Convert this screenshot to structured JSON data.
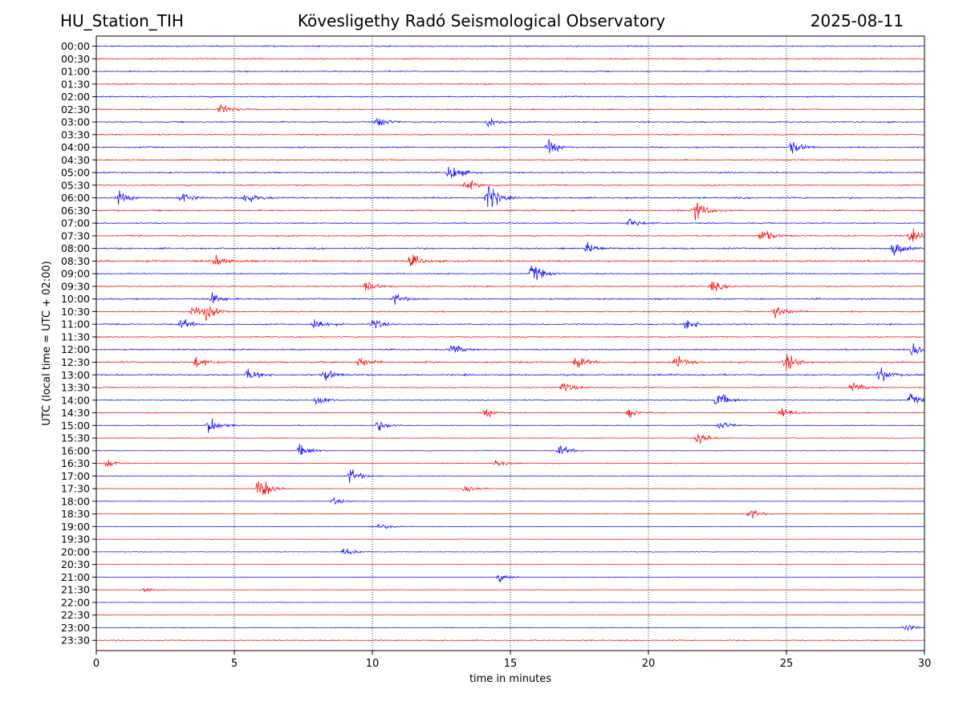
{
  "header": {
    "station": "HU_Station_TIH",
    "observatory": "Kövesligethy Radó Seismological Observatory",
    "date": "2025-08-11"
  },
  "chart_data": {
    "type": "line",
    "title": "Kövesligethy Radó Seismological Observatory",
    "xlabel": "time in minutes",
    "ylabel": "UTC (local time = UTC + 02:00)",
    "xlim": [
      0,
      30
    ],
    "x_ticks": [
      0,
      5,
      10,
      15,
      20,
      25,
      30
    ],
    "vertical_grid": [
      5,
      10,
      15,
      20,
      25
    ],
    "grid": "vertical dotted",
    "series_colors": [
      "#0000ff",
      "#ff0000"
    ],
    "rows": [
      {
        "label": "00:00",
        "noise": 0.55,
        "events": []
      },
      {
        "label": "00:30",
        "noise": 0.55,
        "events": []
      },
      {
        "label": "01:00",
        "noise": 0.5,
        "events": []
      },
      {
        "label": "01:30",
        "noise": 0.5,
        "events": []
      },
      {
        "label": "02:00",
        "noise": 0.6,
        "events": []
      },
      {
        "label": "02:30",
        "noise": 0.55,
        "events": [
          [
            4.5,
            0.9
          ]
        ]
      },
      {
        "label": "03:00",
        "noise": 0.55,
        "events": [
          [
            10.2,
            0.9
          ],
          [
            14.2,
            0.9
          ]
        ]
      },
      {
        "label": "03:30",
        "noise": 0.5,
        "events": []
      },
      {
        "label": "04:00",
        "noise": 0.6,
        "events": [
          [
            16.4,
            1.2
          ],
          [
            25.2,
            1.0
          ]
        ]
      },
      {
        "label": "04:30",
        "noise": 0.5,
        "events": []
      },
      {
        "label": "05:00",
        "noise": 0.6,
        "events": [
          [
            12.8,
            1.6
          ]
        ]
      },
      {
        "label": "05:30",
        "noise": 0.5,
        "events": [
          [
            13.4,
            1.0
          ]
        ]
      },
      {
        "label": "06:00",
        "noise": 0.7,
        "events": [
          [
            0.8,
            1.0
          ],
          [
            3.1,
            1.0
          ],
          [
            5.4,
            1.1
          ],
          [
            14.2,
            2.3
          ]
        ]
      },
      {
        "label": "06:30",
        "noise": 0.6,
        "events": [
          [
            21.7,
            1.8
          ]
        ]
      },
      {
        "label": "07:00",
        "noise": 0.5,
        "events": [
          [
            19.3,
            0.9
          ]
        ]
      },
      {
        "label": "07:30",
        "noise": 0.55,
        "events": [
          [
            24.1,
            1.3
          ],
          [
            29.5,
            1.0
          ]
        ]
      },
      {
        "label": "08:00",
        "noise": 0.7,
        "events": [
          [
            17.8,
            1.0
          ],
          [
            28.9,
            1.2
          ]
        ]
      },
      {
        "label": "08:30",
        "noise": 0.75,
        "events": [
          [
            4.3,
            1.0
          ],
          [
            11.4,
            1.0
          ]
        ]
      },
      {
        "label": "09:00",
        "noise": 0.5,
        "events": [
          [
            15.8,
            1.6
          ]
        ]
      },
      {
        "label": "09:30",
        "noise": 0.5,
        "events": [
          [
            9.8,
            1.0
          ],
          [
            22.3,
            0.9
          ]
        ]
      },
      {
        "label": "10:00",
        "noise": 0.6,
        "events": [
          [
            4.2,
            0.9
          ],
          [
            10.8,
            0.9
          ]
        ]
      },
      {
        "label": "10:30",
        "noise": 0.55,
        "events": [
          [
            3.5,
            1.0
          ],
          [
            4.0,
            1.2
          ],
          [
            24.6,
            1.2
          ]
        ]
      },
      {
        "label": "11:00",
        "noise": 0.6,
        "events": [
          [
            3.1,
            0.9
          ],
          [
            7.9,
            1.1
          ],
          [
            10.0,
            1.0
          ],
          [
            21.4,
            0.9
          ]
        ]
      },
      {
        "label": "11:30",
        "noise": 0.5,
        "events": []
      },
      {
        "label": "12:00",
        "noise": 0.6,
        "events": [
          [
            12.9,
            0.9
          ],
          [
            29.6,
            1.2
          ]
        ]
      },
      {
        "label": "12:30",
        "noise": 0.7,
        "events": [
          [
            3.6,
            1.0
          ],
          [
            9.5,
            0.9
          ],
          [
            17.4,
            1.0
          ],
          [
            21.0,
            1.0
          ],
          [
            25.0,
            1.6
          ]
        ]
      },
      {
        "label": "13:00",
        "noise": 0.7,
        "events": [
          [
            5.5,
            1.0
          ],
          [
            8.3,
            1.0
          ],
          [
            28.4,
            1.2
          ]
        ]
      },
      {
        "label": "13:30",
        "noise": 0.45,
        "events": [
          [
            16.9,
            1.0
          ],
          [
            27.4,
            0.9
          ]
        ]
      },
      {
        "label": "14:00",
        "noise": 0.45,
        "events": [
          [
            8.0,
            1.0
          ],
          [
            22.5,
            1.5
          ],
          [
            29.5,
            1.0
          ]
        ]
      },
      {
        "label": "14:30",
        "noise": 0.4,
        "events": [
          [
            14.1,
            0.8
          ],
          [
            19.3,
            0.8
          ],
          [
            24.8,
            1.0
          ]
        ]
      },
      {
        "label": "15:00",
        "noise": 0.35,
        "events": [
          [
            4.1,
            1.5
          ],
          [
            10.2,
            0.9
          ],
          [
            22.6,
            0.8
          ]
        ]
      },
      {
        "label": "15:30",
        "noise": 0.3,
        "events": [
          [
            21.8,
            1.3
          ]
        ]
      },
      {
        "label": "16:00",
        "noise": 0.3,
        "events": [
          [
            7.4,
            1.2
          ],
          [
            16.8,
            0.9
          ]
        ]
      },
      {
        "label": "16:30",
        "noise": 0.3,
        "events": [
          [
            0.4,
            0.8
          ],
          [
            14.5,
            0.6
          ]
        ]
      },
      {
        "label": "17:00",
        "noise": 0.3,
        "events": [
          [
            9.2,
            1.3
          ]
        ]
      },
      {
        "label": "17:30",
        "noise": 0.3,
        "events": [
          [
            5.9,
            2.2
          ],
          [
            13.4,
            0.7
          ]
        ]
      },
      {
        "label": "18:00",
        "noise": 0.25,
        "events": [
          [
            8.6,
            0.6
          ]
        ]
      },
      {
        "label": "18:30",
        "noise": 0.25,
        "events": [
          [
            23.7,
            0.9
          ]
        ]
      },
      {
        "label": "19:00",
        "noise": 0.25,
        "events": [
          [
            10.3,
            0.6
          ]
        ]
      },
      {
        "label": "19:30",
        "noise": 0.25,
        "events": []
      },
      {
        "label": "20:00",
        "noise": 0.25,
        "events": [
          [
            9.0,
            0.7
          ]
        ]
      },
      {
        "label": "20:30",
        "noise": 0.22,
        "events": []
      },
      {
        "label": "21:00",
        "noise": 0.25,
        "events": [
          [
            14.6,
            0.7
          ]
        ]
      },
      {
        "label": "21:30",
        "noise": 0.25,
        "events": [
          [
            1.7,
            0.6
          ]
        ]
      },
      {
        "label": "22:00",
        "noise": 0.22,
        "events": []
      },
      {
        "label": "22:30",
        "noise": 0.22,
        "events": []
      },
      {
        "label": "23:00",
        "noise": 0.35,
        "events": [
          [
            29.3,
            0.7
          ]
        ]
      },
      {
        "label": "23:30",
        "noise": 0.45,
        "events": []
      }
    ]
  }
}
